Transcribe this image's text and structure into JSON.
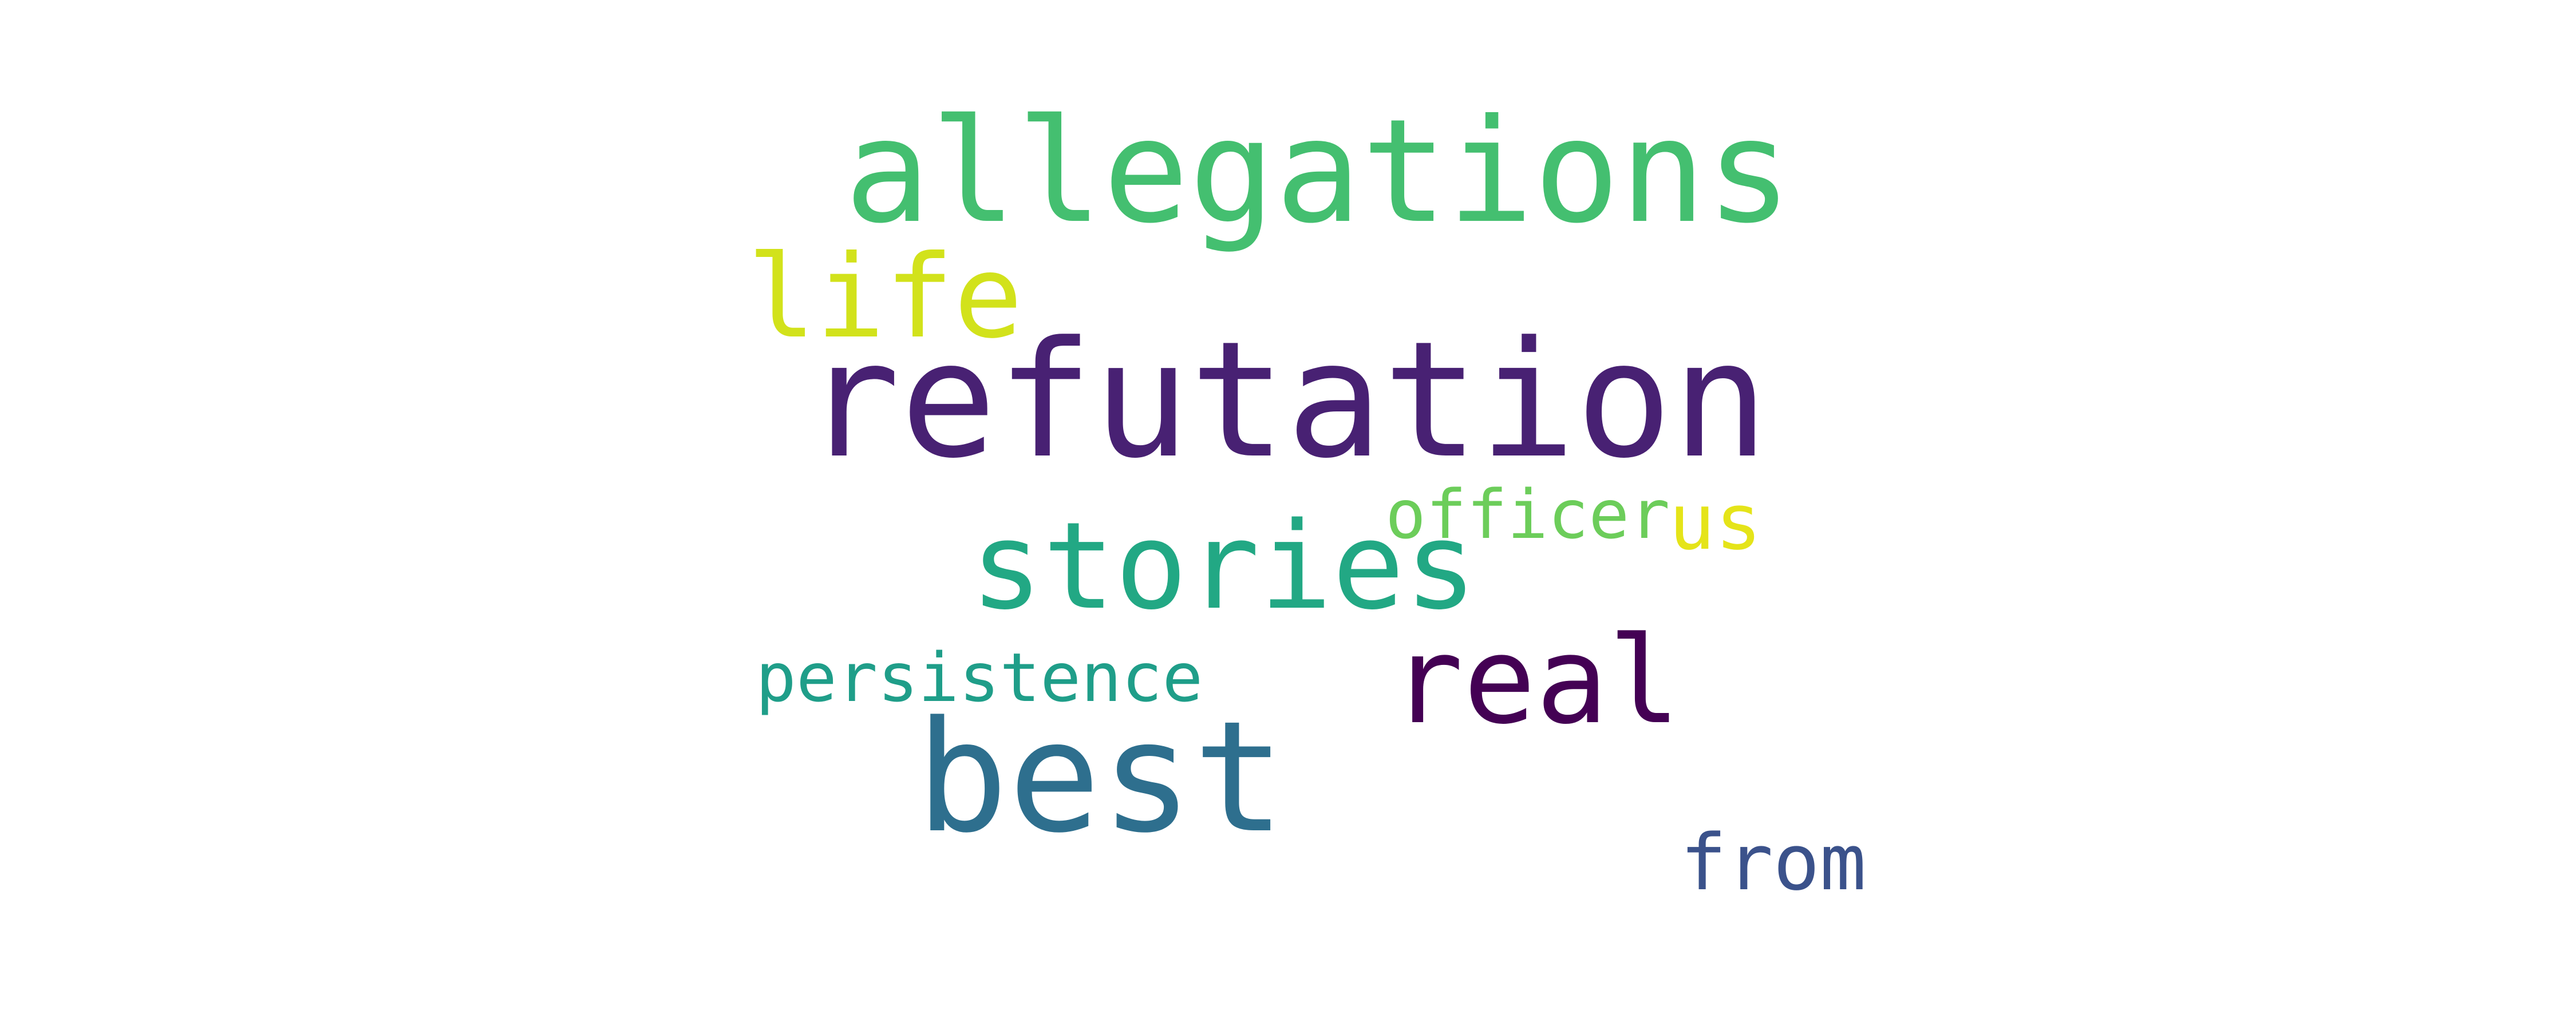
{
  "words": [
    {
      "text": "refutation",
      "color": "#482173"
    },
    {
      "text": "allegations",
      "color": "#44bf70"
    },
    {
      "text": "best",
      "color": "#2e6f8e"
    },
    {
      "text": "stories",
      "color": "#22a884"
    },
    {
      "text": "real",
      "color": "#440154"
    },
    {
      "text": "life",
      "color": "#d2e21b"
    },
    {
      "text": "us",
      "color": "#e5e419"
    },
    {
      "text": "persistence",
      "color": "#1f9e89"
    },
    {
      "text": "officer",
      "color": "#6ccd5a"
    },
    {
      "text": "from",
      "color": "#3b528b"
    }
  ]
}
